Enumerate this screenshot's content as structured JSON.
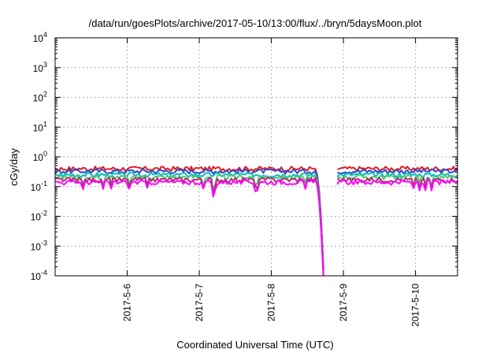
{
  "chart_data": {
    "type": "line",
    "title": "/data/run/goesPlots/archive/2017-05-10/13:00/flux/../bryn/5daysMoon.plot",
    "xlabel": "Coordinated Universal Time (UTC)",
    "ylabel": "cGy/day",
    "yscale": "log",
    "ylim": [
      0.0001,
      10000
    ],
    "xlim": [
      "2017-05-05 00:00",
      "2017-05-10 14:00"
    ],
    "grid": true,
    "legend": "none",
    "y_ticks": [
      {
        "base": "10",
        "exp": "4"
      },
      {
        "base": "10",
        "exp": "3"
      },
      {
        "base": "10",
        "exp": "2"
      },
      {
        "base": "10",
        "exp": "1"
      },
      {
        "base": "10",
        "exp": "0"
      },
      {
        "base": "10",
        "exp": "-1"
      },
      {
        "base": "10",
        "exp": "-2"
      },
      {
        "base": "10",
        "exp": "-3"
      },
      {
        "base": "10",
        "exp": "-4"
      }
    ],
    "x_ticks": [
      "2017-5-6",
      "2017-5-7",
      "2017-5-8",
      "2017-5-9",
      "2017-5-10"
    ],
    "x_tick_dates": [
      "2017-05-06",
      "2017-05-07",
      "2017-05-08",
      "2017-05-09",
      "2017-05-10"
    ],
    "gap": {
      "start": "2017-05-08 17:30",
      "end": "2017-05-08 22:00"
    },
    "series": [
      {
        "color": "#e41a1c",
        "baseline": 0.4
      },
      {
        "color": "#3344cc",
        "baseline": 0.33
      },
      {
        "color": "#00bfbf",
        "baseline": 0.25
      },
      {
        "color": "#50c878",
        "baseline": 0.21
      },
      {
        "color": "#b0306e",
        "baseline": 0.17
      },
      {
        "color": "#ff00ff",
        "baseline": 0.14
      }
    ]
  }
}
